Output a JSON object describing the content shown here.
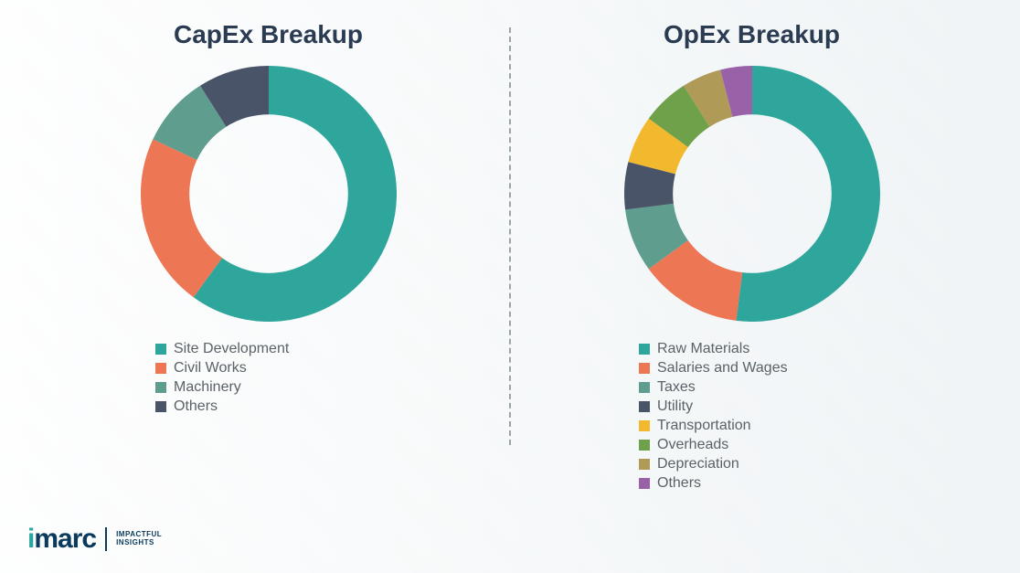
{
  "background_color": "#eef2f4",
  "charts": {
    "capex": {
      "title": "CapEx Breakup",
      "title_color": "#2a3b52",
      "title_fontsize": 28,
      "type": "donut",
      "inner_radius_pct": 62,
      "stroke_width": 38,
      "start_angle_deg": 0,
      "segments": [
        {
          "label": "Site Development",
          "value": 60,
          "color": "#2fa69b"
        },
        {
          "label": "Civil Works",
          "value": 22,
          "color": "#ed7655"
        },
        {
          "label": "Machinery",
          "value": 9,
          "color": "#5f9e8e"
        },
        {
          "label": "Others",
          "value": 9,
          "color": "#4a5468"
        }
      ],
      "legend_fontsize": 16,
      "legend_text_color": "#5a6268"
    },
    "opex": {
      "title": "OpEx Breakup",
      "title_color": "#2a3b52",
      "title_fontsize": 28,
      "type": "donut",
      "inner_radius_pct": 62,
      "stroke_width": 38,
      "start_angle_deg": 0,
      "segments": [
        {
          "label": "Raw Materials",
          "value": 52,
          "color": "#2fa69b"
        },
        {
          "label": "Salaries and Wages",
          "value": 13,
          "color": "#ed7655"
        },
        {
          "label": "Taxes",
          "value": 8,
          "color": "#5f9e8e"
        },
        {
          "label": "Utility",
          "value": 6,
          "color": "#4a5468"
        },
        {
          "label": "Transportation",
          "value": 6,
          "color": "#f2b92f"
        },
        {
          "label": "Overheads",
          "value": 6,
          "color": "#6fa14a"
        },
        {
          "label": "Depreciation",
          "value": 5,
          "color": "#b09a58"
        },
        {
          "label": "Others",
          "value": 4,
          "color": "#9861a8"
        }
      ],
      "legend_fontsize": 16,
      "legend_text_color": "#5a6268"
    }
  },
  "divider_color": "#9aa5ab",
  "logo": {
    "text": "imarc",
    "brand_color": "#0a3b5c",
    "dot_color": "#2aa6a0",
    "tagline_line1": "IMPACTFUL",
    "tagline_line2": "INSIGHTS"
  }
}
